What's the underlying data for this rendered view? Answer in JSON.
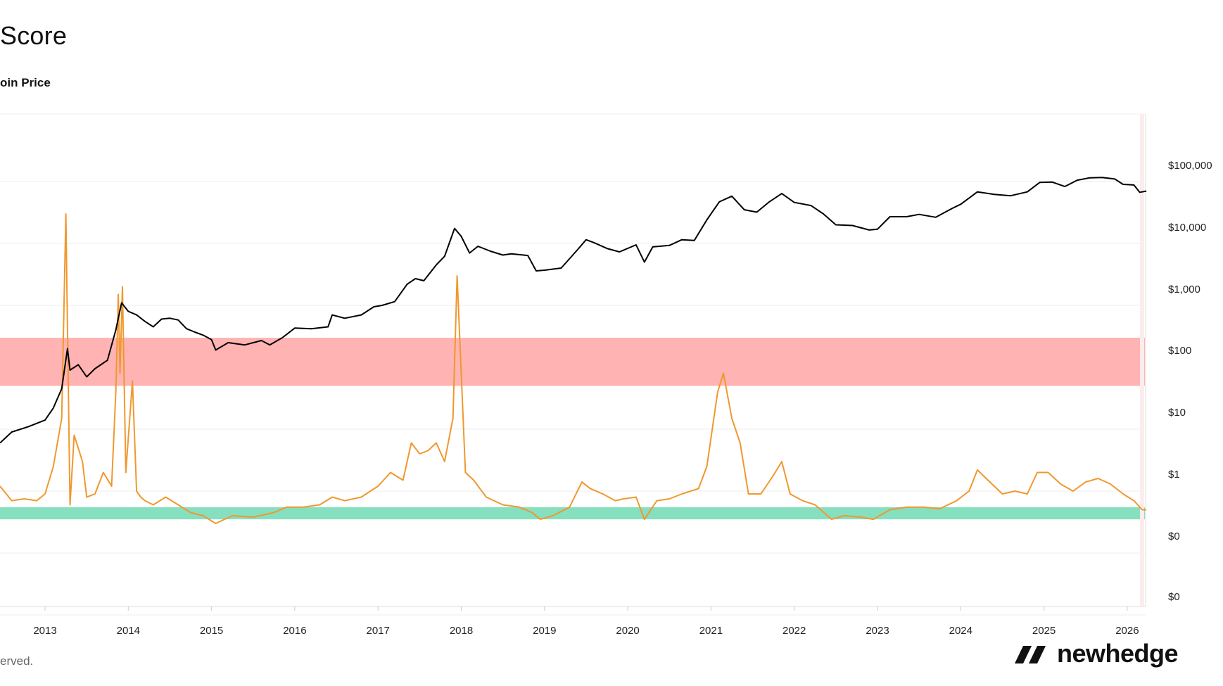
{
  "header": {
    "title": "Score",
    "legend_label": "oin Price"
  },
  "footer": {
    "copyright": "erved.",
    "brand": "newhedge"
  },
  "colors": {
    "price_line": "#000000",
    "score_line": "#f0982e",
    "red_band": "#ffb3b3",
    "green_band": "#86dfbf",
    "grid": "#eeeeee"
  },
  "chart_data": {
    "type": "line",
    "title": "Score",
    "y_axis_right": {
      "scale": "log",
      "tick_labels": [
        "$100,000",
        "$10,000",
        "$1,000",
        "$100",
        "$10",
        "$1",
        "$0",
        "$0"
      ]
    },
    "x_axis": {
      "tick_labels": [
        "2013",
        "2014",
        "2015",
        "2016",
        "2017",
        "2018",
        "2019",
        "2020",
        "2021",
        "2022",
        "2023",
        "2024",
        "2025",
        "2026"
      ],
      "range": [
        2012.46,
        2026.23
      ]
    },
    "bands": [
      {
        "name": "red-zone",
        "color": "#ffb3b3",
        "y_range_usd": [
          50,
          300
        ]
      },
      {
        "name": "green-zone",
        "color": "#86dfbf",
        "y_range_usd": [
          0.35,
          0.55
        ]
      }
    ],
    "series": [
      {
        "name": "Bitcoin Price",
        "color": "#000000",
        "points": [
          [
            2012.46,
            6
          ],
          [
            2012.6,
            9
          ],
          [
            2012.8,
            11
          ],
          [
            2013.0,
            14
          ],
          [
            2013.1,
            22
          ],
          [
            2013.2,
            45
          ],
          [
            2013.27,
            200
          ],
          [
            2013.3,
            90
          ],
          [
            2013.4,
            110
          ],
          [
            2013.5,
            70
          ],
          [
            2013.6,
            95
          ],
          [
            2013.75,
            130
          ],
          [
            2013.85,
            400
          ],
          [
            2013.92,
            1100
          ],
          [
            2014.0,
            800
          ],
          [
            2014.1,
            700
          ],
          [
            2014.2,
            550
          ],
          [
            2014.3,
            450
          ],
          [
            2014.4,
            600
          ],
          [
            2014.5,
            620
          ],
          [
            2014.6,
            580
          ],
          [
            2014.7,
            420
          ],
          [
            2014.8,
            370
          ],
          [
            2014.9,
            330
          ],
          [
            2015.0,
            280
          ],
          [
            2015.05,
            190
          ],
          [
            2015.2,
            250
          ],
          [
            2015.4,
            230
          ],
          [
            2015.6,
            270
          ],
          [
            2015.7,
            230
          ],
          [
            2015.85,
            300
          ],
          [
            2016.0,
            430
          ],
          [
            2016.2,
            420
          ],
          [
            2016.4,
            450
          ],
          [
            2016.45,
            700
          ],
          [
            2016.6,
            620
          ],
          [
            2016.8,
            700
          ],
          [
            2016.95,
            950
          ],
          [
            2017.05,
            1000
          ],
          [
            2017.2,
            1150
          ],
          [
            2017.35,
            2200
          ],
          [
            2017.45,
            2700
          ],
          [
            2017.55,
            2500
          ],
          [
            2017.7,
            4500
          ],
          [
            2017.8,
            6200
          ],
          [
            2017.92,
            17500
          ],
          [
            2018.0,
            13000
          ],
          [
            2018.1,
            7000
          ],
          [
            2018.2,
            9000
          ],
          [
            2018.35,
            7500
          ],
          [
            2018.5,
            6500
          ],
          [
            2018.6,
            6800
          ],
          [
            2018.8,
            6400
          ],
          [
            2018.9,
            3600
          ],
          [
            2019.0,
            3700
          ],
          [
            2019.2,
            4000
          ],
          [
            2019.4,
            8000
          ],
          [
            2019.5,
            11500
          ],
          [
            2019.6,
            10200
          ],
          [
            2019.75,
            8300
          ],
          [
            2019.9,
            7300
          ],
          [
            2020.1,
            9500
          ],
          [
            2020.2,
            5000
          ],
          [
            2020.3,
            8800
          ],
          [
            2020.5,
            9300
          ],
          [
            2020.65,
            11500
          ],
          [
            2020.8,
            11200
          ],
          [
            2020.95,
            24000
          ],
          [
            2021.1,
            47000
          ],
          [
            2021.25,
            58000
          ],
          [
            2021.4,
            35000
          ],
          [
            2021.55,
            32000
          ],
          [
            2021.7,
            47000
          ],
          [
            2021.85,
            64000
          ],
          [
            2022.0,
            46000
          ],
          [
            2022.2,
            41000
          ],
          [
            2022.35,
            30000
          ],
          [
            2022.5,
            20000
          ],
          [
            2022.7,
            19500
          ],
          [
            2022.9,
            16500
          ],
          [
            2023.0,
            17000
          ],
          [
            2023.15,
            27000
          ],
          [
            2023.35,
            27000
          ],
          [
            2023.5,
            29500
          ],
          [
            2023.7,
            26500
          ],
          [
            2023.9,
            37000
          ],
          [
            2024.0,
            43000
          ],
          [
            2024.2,
            68000
          ],
          [
            2024.4,
            62000
          ],
          [
            2024.6,
            59000
          ],
          [
            2024.8,
            68000
          ],
          [
            2024.95,
            97000
          ],
          [
            2025.1,
            98000
          ],
          [
            2025.25,
            83000
          ],
          [
            2025.4,
            105000
          ],
          [
            2025.55,
            115000
          ],
          [
            2025.7,
            116000
          ],
          [
            2025.85,
            110000
          ],
          [
            2025.95,
            90000
          ],
          [
            2026.08,
            88000
          ],
          [
            2026.15,
            67000
          ],
          [
            2026.23,
            70000
          ]
        ]
      },
      {
        "name": "Score",
        "color": "#f0982e",
        "points": [
          [
            2012.46,
            1.2
          ],
          [
            2012.6,
            0.7
          ],
          [
            2012.75,
            0.75
          ],
          [
            2012.9,
            0.7
          ],
          [
            2013.0,
            0.9
          ],
          [
            2013.1,
            2.5
          ],
          [
            2013.2,
            15
          ],
          [
            2013.25,
            30000
          ],
          [
            2013.3,
            0.6
          ],
          [
            2013.35,
            8
          ],
          [
            2013.45,
            3
          ],
          [
            2013.5,
            0.8
          ],
          [
            2013.6,
            0.9
          ],
          [
            2013.7,
            2
          ],
          [
            2013.8,
            1.2
          ],
          [
            2013.85,
            40
          ],
          [
            2013.88,
            1500
          ],
          [
            2013.9,
            80
          ],
          [
            2013.93,
            2000
          ],
          [
            2013.97,
            2
          ],
          [
            2014.05,
            60
          ],
          [
            2014.1,
            1
          ],
          [
            2014.15,
            0.8
          ],
          [
            2014.2,
            0.7
          ],
          [
            2014.3,
            0.6
          ],
          [
            2014.45,
            0.8
          ],
          [
            2014.6,
            0.6
          ],
          [
            2014.75,
            0.45
          ],
          [
            2014.9,
            0.4
          ],
          [
            2015.05,
            0.3
          ],
          [
            2015.25,
            0.4
          ],
          [
            2015.5,
            0.38
          ],
          [
            2015.75,
            0.45
          ],
          [
            2015.9,
            0.55
          ],
          [
            2016.1,
            0.55
          ],
          [
            2016.3,
            0.6
          ],
          [
            2016.45,
            0.8
          ],
          [
            2016.6,
            0.7
          ],
          [
            2016.8,
            0.8
          ],
          [
            2017.0,
            1.2
          ],
          [
            2017.15,
            2
          ],
          [
            2017.3,
            1.5
          ],
          [
            2017.4,
            6
          ],
          [
            2017.5,
            4
          ],
          [
            2017.6,
            4.5
          ],
          [
            2017.7,
            6
          ],
          [
            2017.8,
            3
          ],
          [
            2017.9,
            15
          ],
          [
            2017.95,
            3000
          ],
          [
            2018.05,
            2
          ],
          [
            2018.15,
            1.5
          ],
          [
            2018.3,
            0.8
          ],
          [
            2018.5,
            0.6
          ],
          [
            2018.7,
            0.55
          ],
          [
            2018.85,
            0.45
          ],
          [
            2018.95,
            0.35
          ],
          [
            2019.1,
            0.4
          ],
          [
            2019.3,
            0.55
          ],
          [
            2019.45,
            1.4
          ],
          [
            2019.55,
            1.1
          ],
          [
            2019.7,
            0.9
          ],
          [
            2019.85,
            0.7
          ],
          [
            2019.95,
            0.75
          ],
          [
            2020.1,
            0.8
          ],
          [
            2020.2,
            0.35
          ],
          [
            2020.35,
            0.7
          ],
          [
            2020.5,
            0.75
          ],
          [
            2020.65,
            0.9
          ],
          [
            2020.85,
            1.1
          ],
          [
            2020.95,
            2.5
          ],
          [
            2021.08,
            40
          ],
          [
            2021.15,
            80
          ],
          [
            2021.25,
            15
          ],
          [
            2021.35,
            6
          ],
          [
            2021.45,
            0.9
          ],
          [
            2021.6,
            0.9
          ],
          [
            2021.75,
            1.8
          ],
          [
            2021.85,
            3
          ],
          [
            2021.95,
            0.9
          ],
          [
            2022.1,
            0.7
          ],
          [
            2022.25,
            0.6
          ],
          [
            2022.45,
            0.35
          ],
          [
            2022.6,
            0.4
          ],
          [
            2022.8,
            0.38
          ],
          [
            2022.95,
            0.35
          ],
          [
            2023.15,
            0.5
          ],
          [
            2023.35,
            0.55
          ],
          [
            2023.55,
            0.55
          ],
          [
            2023.75,
            0.52
          ],
          [
            2023.95,
            0.7
          ],
          [
            2024.1,
            1.0
          ],
          [
            2024.2,
            2.2
          ],
          [
            2024.35,
            1.4
          ],
          [
            2024.5,
            0.9
          ],
          [
            2024.65,
            1.0
          ],
          [
            2024.8,
            0.9
          ],
          [
            2024.92,
            2.0
          ],
          [
            2025.05,
            2.0
          ],
          [
            2025.2,
            1.3
          ],
          [
            2025.35,
            1.0
          ],
          [
            2025.5,
            1.4
          ],
          [
            2025.65,
            1.6
          ],
          [
            2025.8,
            1.3
          ],
          [
            2025.95,
            0.9
          ],
          [
            2026.08,
            0.7
          ],
          [
            2026.18,
            0.5
          ],
          [
            2026.23,
            0.5
          ]
        ]
      }
    ]
  }
}
